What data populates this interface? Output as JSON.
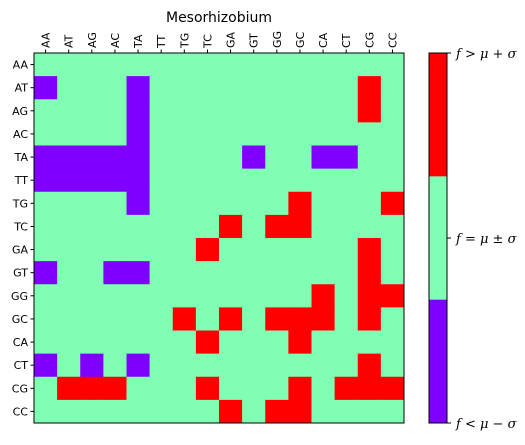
{
  "chart_data": {
    "type": "heatmap",
    "title": "Mesorhizobium",
    "x_labels": [
      "AA",
      "AT",
      "AG",
      "AC",
      "TA",
      "TT",
      "TG",
      "TC",
      "GA",
      "GT",
      "GG",
      "GC",
      "CA",
      "CT",
      "CG",
      "CC"
    ],
    "y_labels": [
      "AA",
      "AT",
      "AG",
      "AC",
      "TA",
      "TT",
      "TG",
      "TC",
      "GA",
      "GT",
      "GG",
      "GC",
      "CA",
      "CT",
      "CG",
      "CC"
    ],
    "value_encoding": {
      "-1": "f<μ−σ",
      "0": "f=μ±σ",
      "1": "f>μ+σ"
    },
    "values": [
      [
        0,
        0,
        0,
        0,
        0,
        0,
        0,
        0,
        0,
        0,
        0,
        0,
        0,
        0,
        0,
        0
      ],
      [
        -1,
        0,
        0,
        0,
        -1,
        0,
        0,
        0,
        0,
        0,
        0,
        0,
        0,
        0,
        1,
        0
      ],
      [
        0,
        0,
        0,
        0,
        -1,
        0,
        0,
        0,
        0,
        0,
        0,
        0,
        0,
        0,
        1,
        0
      ],
      [
        0,
        0,
        0,
        0,
        -1,
        0,
        0,
        0,
        0,
        0,
        0,
        0,
        0,
        0,
        0,
        0
      ],
      [
        -1,
        -1,
        -1,
        -1,
        -1,
        0,
        0,
        0,
        0,
        -1,
        0,
        0,
        -1,
        -1,
        0,
        0
      ],
      [
        -1,
        -1,
        -1,
        -1,
        -1,
        0,
        0,
        0,
        0,
        0,
        0,
        0,
        0,
        0,
        0,
        0
      ],
      [
        0,
        0,
        0,
        0,
        -1,
        0,
        0,
        0,
        0,
        0,
        0,
        1,
        0,
        0,
        0,
        1
      ],
      [
        0,
        0,
        0,
        0,
        0,
        0,
        0,
        0,
        1,
        0,
        1,
        1,
        0,
        0,
        0,
        0
      ],
      [
        0,
        0,
        0,
        0,
        0,
        0,
        0,
        1,
        0,
        0,
        0,
        0,
        0,
        0,
        1,
        0
      ],
      [
        -1,
        0,
        0,
        -1,
        -1,
        0,
        0,
        0,
        0,
        0,
        0,
        0,
        0,
        0,
        1,
        0
      ],
      [
        0,
        0,
        0,
        0,
        0,
        0,
        0,
        0,
        0,
        0,
        0,
        0,
        1,
        0,
        1,
        1
      ],
      [
        0,
        0,
        0,
        0,
        0,
        0,
        1,
        0,
        1,
        0,
        1,
        1,
        1,
        0,
        1,
        0
      ],
      [
        0,
        0,
        0,
        0,
        0,
        0,
        0,
        1,
        0,
        0,
        0,
        1,
        0,
        0,
        0,
        0
      ],
      [
        -1,
        0,
        -1,
        0,
        -1,
        0,
        0,
        0,
        0,
        0,
        0,
        0,
        0,
        0,
        1,
        0
      ],
      [
        0,
        1,
        1,
        1,
        0,
        0,
        0,
        1,
        0,
        0,
        0,
        1,
        0,
        1,
        1,
        1
      ],
      [
        0,
        0,
        0,
        0,
        0,
        0,
        0,
        0,
        1,
        0,
        1,
        1,
        0,
        0,
        0,
        0
      ]
    ],
    "colors": {
      "low": "#8000ff",
      "mid": "#80ffb4",
      "high": "#ff0000"
    },
    "colorbar": {
      "labels": [
        "f > μ + σ",
        "f = μ ± σ",
        "f < μ − σ"
      ]
    }
  }
}
